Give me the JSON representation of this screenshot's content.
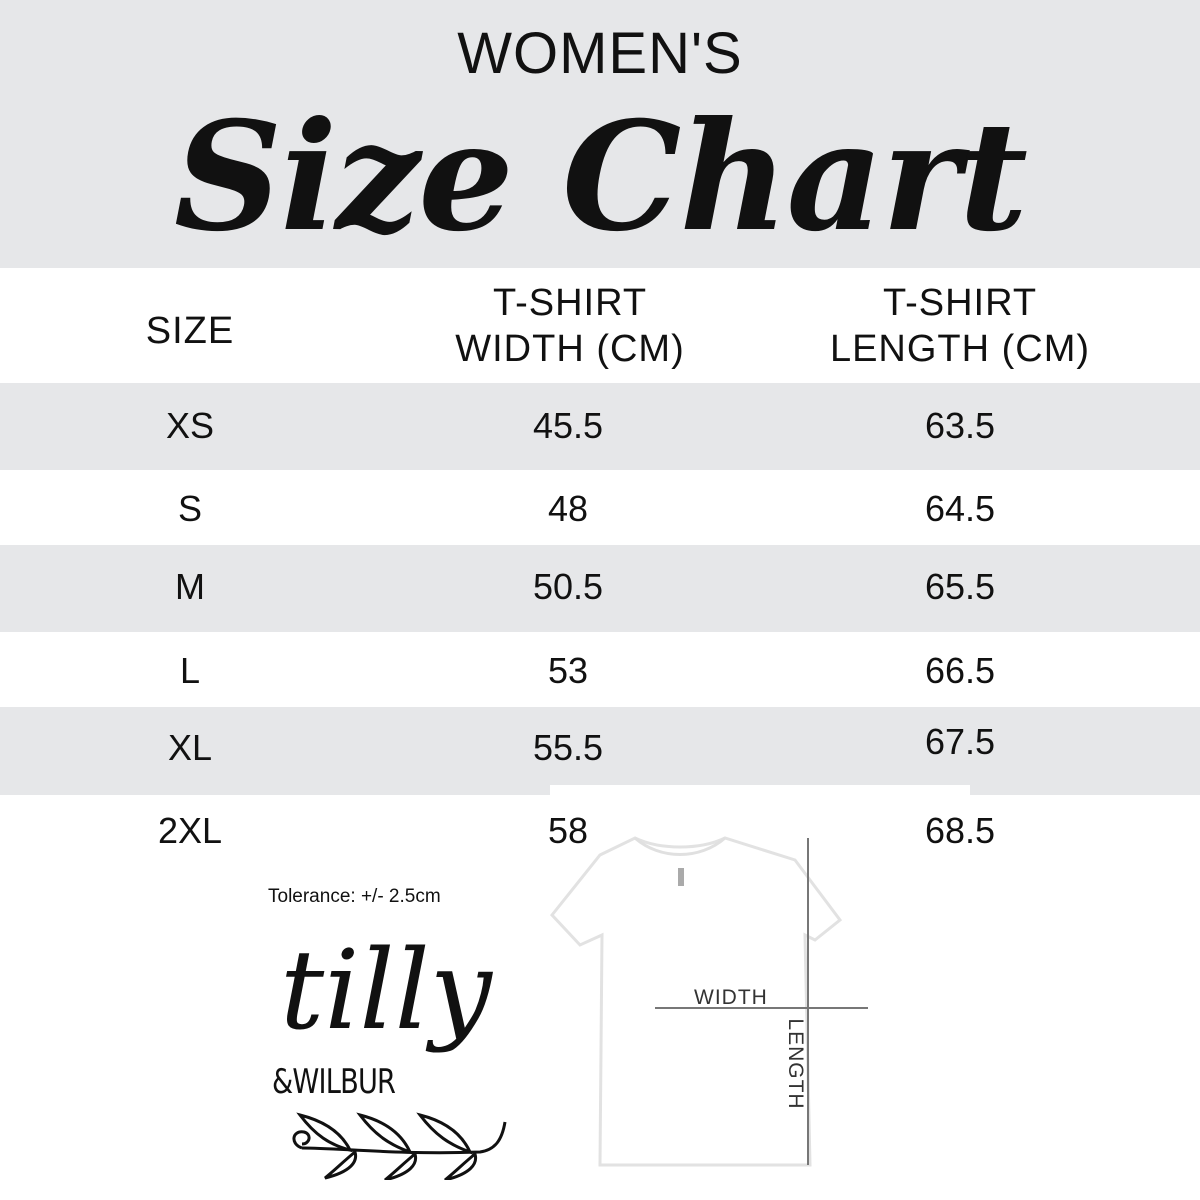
{
  "header": {
    "subtitle": "WOMEN'S",
    "title": "Size Chart"
  },
  "table": {
    "columns": [
      "SIZE",
      "T-SHIRT WIDTH (CM)",
      "T-SHIRT LENGTH (CM)"
    ],
    "col_width_line1": "T-SHIRT",
    "col_width_line2": "WIDTH (CM)",
    "col_length_line1": "T-SHIRT",
    "col_length_line2": "LENGTH (CM)",
    "rows": [
      {
        "size": "XS",
        "width": "45.5",
        "length": "63.5"
      },
      {
        "size": "S",
        "width": "48",
        "length": "64.5"
      },
      {
        "size": "M",
        "width": "50.5",
        "length": "65.5"
      },
      {
        "size": "L",
        "width": "53",
        "length": "66.5"
      },
      {
        "size": "XL",
        "width": "55.5",
        "length": "67.5"
      },
      {
        "size": "2XL",
        "width": "58",
        "length": "68.5"
      }
    ]
  },
  "tolerance": "Tolerance: +/- 2.5cm",
  "logo": {
    "line1": "tilly",
    "line2": "&WILBUR"
  },
  "diagram": {
    "width_label": "WIDTH",
    "length_label": "LENGTH"
  },
  "colors": {
    "band_gray": "#e6e7e9",
    "text": "#111111",
    "measure_line": "#777777"
  }
}
